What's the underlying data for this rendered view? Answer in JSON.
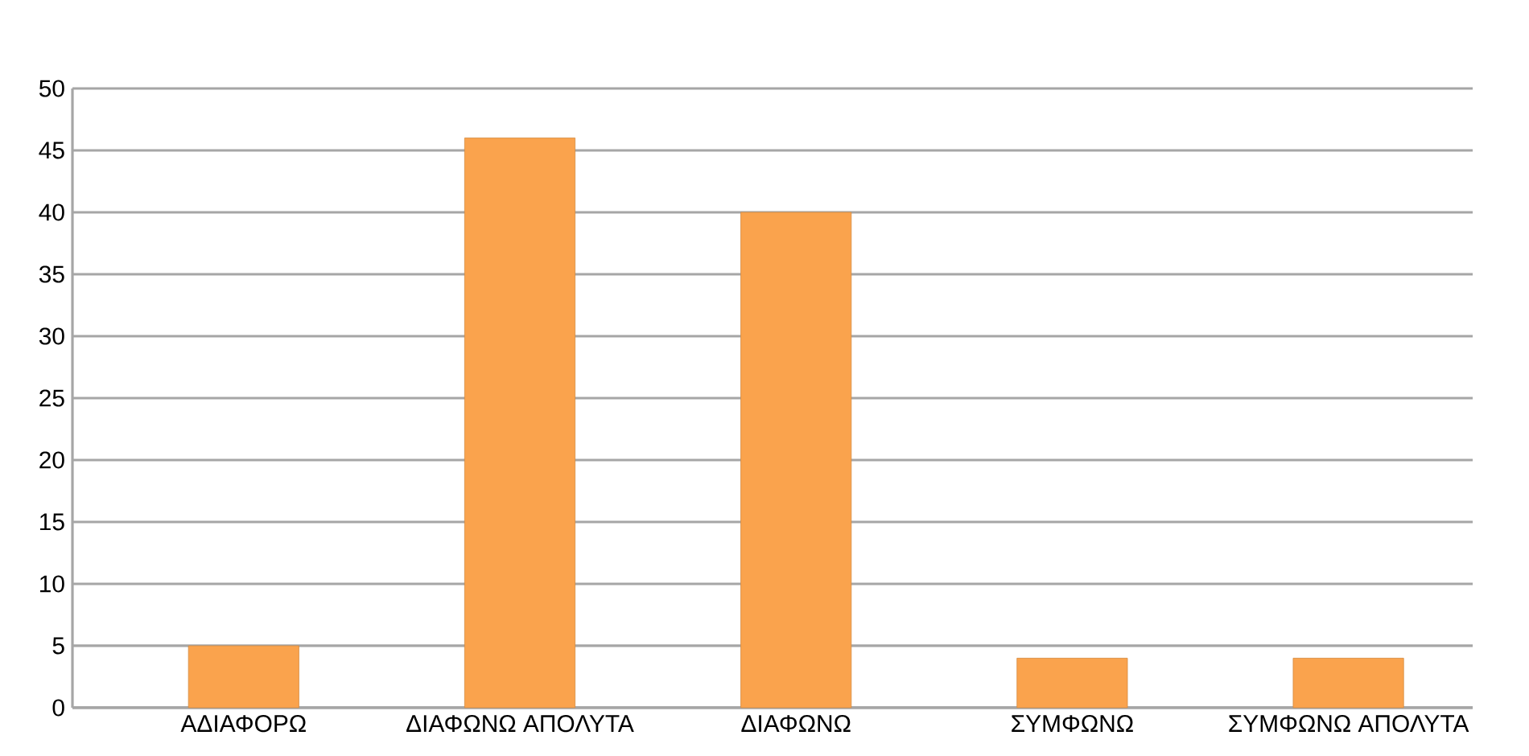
{
  "chart_data": {
    "type": "bar",
    "categories": [
      "ΑΔΙΑΦΟΡΩ",
      "ΔΙΑΦΩΝΩ ΑΠΟΛΥΤΑ",
      "ΔΙΑΦΩΝΩ",
      "ΣΥΜΦΩΝΩ",
      "ΣΥΜΦΩΝΩ ΑΠΟΛΥΤΑ"
    ],
    "values": [
      5,
      46,
      40,
      4,
      4
    ],
    "color": "#faa34d",
    "ylim": [
      0,
      50
    ],
    "yticks": [
      0,
      5,
      10,
      15,
      20,
      25,
      30,
      35,
      40,
      45,
      50
    ],
    "grid": "y"
  }
}
